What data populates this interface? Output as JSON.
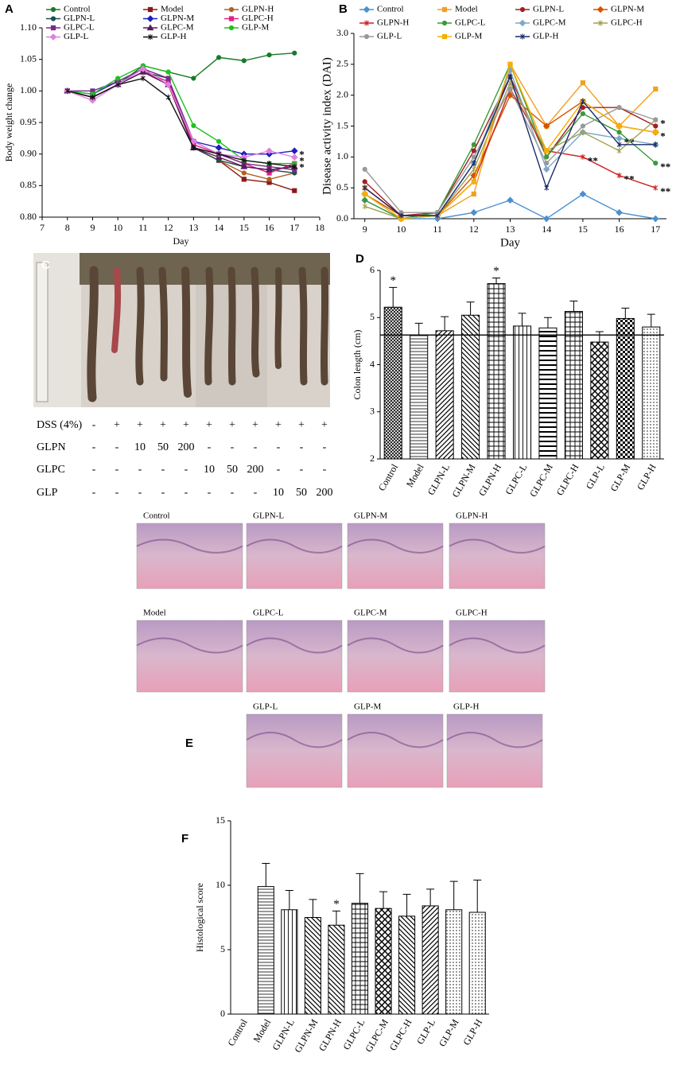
{
  "chart_data": [
    {
      "type": "line",
      "panel": "A",
      "xlabel": "Day",
      "ylabel": "Body weight change",
      "x": [
        8,
        9,
        10,
        11,
        12,
        13,
        14,
        15,
        16,
        17
      ],
      "xlim": [
        7,
        18
      ],
      "xticks": [
        7,
        8,
        9,
        10,
        11,
        12,
        13,
        14,
        15,
        16,
        17,
        18
      ],
      "ylim": [
        0.8,
        1.1
      ],
      "yticks": [
        {
          "value": 0.8,
          "label": "0.80"
        },
        0.85,
        {
          "value": 0.9,
          "label": "0.90"
        },
        0.95,
        {
          "value": 1.0,
          "label": "1.00"
        },
        1.05,
        {
          "value": 1.1,
          "label": "1.10"
        }
      ],
      "legend": "top-left",
      "series": [
        {
          "name": "Control",
          "color": "#1a7a2a",
          "marker": "circle",
          "values": [
            1.0,
            0.99,
            1.01,
            1.04,
            1.03,
            1.02,
            1.053,
            1.048,
            1.057,
            1.06
          ]
        },
        {
          "name": "Model",
          "color": "#8b1a1a",
          "marker": "square",
          "values": [
            1.0,
            0.99,
            1.01,
            1.03,
            1.01,
            0.91,
            0.89,
            0.86,
            0.855,
            0.842
          ]
        },
        {
          "name": "GLPN-H",
          "color": "#b06020",
          "marker": "circle",
          "values": [
            1.0,
            0.99,
            1.01,
            1.03,
            1.01,
            0.91,
            0.89,
            0.87,
            0.86,
            0.87
          ]
        },
        {
          "name": "GLPN-L",
          "color": "#1f5050",
          "marker": "circle",
          "values": [
            1.0,
            0.99,
            1.01,
            1.03,
            1.02,
            0.91,
            0.89,
            0.88,
            0.875,
            0.87
          ]
        },
        {
          "name": "GLPN-M",
          "color": "#1f1fbf",
          "marker": "diamond",
          "values": [
            1.0,
            0.995,
            1.015,
            1.035,
            1.01,
            0.92,
            0.91,
            0.9,
            0.9,
            0.905
          ],
          "significance": [
            null,
            null,
            null,
            null,
            null,
            null,
            null,
            null,
            null,
            "*"
          ]
        },
        {
          "name": "GLPC-H",
          "color": "#e0208a",
          "marker": "square",
          "values": [
            1.0,
            0.99,
            1.01,
            1.03,
            1.015,
            0.915,
            0.9,
            0.885,
            0.87,
            0.885
          ]
        },
        {
          "name": "GLPC-L",
          "color": "#7a2a8a",
          "marker": "square",
          "values": [
            1.0,
            1.0,
            1.015,
            1.035,
            1.02,
            0.92,
            0.9,
            0.885,
            0.88,
            0.875
          ]
        },
        {
          "name": "GLPC-M",
          "color": "#5a1a5a",
          "marker": "triangle",
          "values": [
            1.0,
            0.99,
            1.01,
            1.03,
            1.01,
            0.91,
            0.895,
            0.88,
            0.875,
            0.88
          ]
        },
        {
          "name": "GLP-M",
          "color": "#20c020",
          "marker": "circle",
          "values": [
            1.0,
            0.995,
            1.02,
            1.04,
            1.03,
            0.945,
            0.92,
            0.89,
            0.885,
            0.885
          ],
          "significance": [
            null,
            null,
            null,
            null,
            null,
            null,
            null,
            null,
            null,
            "*"
          ]
        },
        {
          "name": "GLP-L",
          "color": "#e080e0",
          "marker": "diamond",
          "values": [
            1.0,
            0.985,
            1.01,
            1.035,
            1.01,
            0.92,
            0.9,
            0.895,
            0.905,
            0.895
          ],
          "significance": [
            null,
            null,
            null,
            null,
            null,
            null,
            null,
            null,
            null,
            "*"
          ]
        },
        {
          "name": "GLP-H",
          "color": "#111111",
          "marker": "star",
          "values": [
            1.0,
            0.99,
            1.01,
            1.02,
            0.99,
            0.91,
            0.9,
            0.89,
            0.885,
            0.88
          ]
        }
      ]
    },
    {
      "type": "line",
      "panel": "B",
      "xlabel": "Day",
      "ylabel": "Disease activity index (DAI)",
      "x": [
        9,
        10,
        11,
        12,
        13,
        14,
        15,
        16,
        17
      ],
      "xlim": [
        8.7,
        17.3
      ],
      "xticks": [
        9,
        10,
        11,
        12,
        13,
        14,
        15,
        16,
        17
      ],
      "ylim": [
        0,
        3
      ],
      "yticks": [
        {
          "value": 0,
          "label": "0.0"
        },
        0.5,
        {
          "value": 1,
          "label": "1.0"
        },
        1.5,
        {
          "value": 2,
          "label": "2.0"
        },
        2.5,
        {
          "value": 3,
          "label": "3.0"
        }
      ],
      "legend": "top",
      "series": [
        {
          "name": "Control",
          "color": "#4a90d0",
          "marker": "diamond",
          "values": [
            0.3,
            0.0,
            0.0,
            0.1,
            0.3,
            0.0,
            0.4,
            0.1,
            0.0
          ]
        },
        {
          "name": "Model",
          "color": "#f0a020",
          "marker": "square",
          "values": [
            0.5,
            0.05,
            0.05,
            0.4,
            2.5,
            1.5,
            2.2,
            1.5,
            2.1
          ]
        },
        {
          "name": "GLPN-L",
          "color": "#a02020",
          "marker": "circle",
          "values": [
            0.6,
            0.05,
            0.1,
            1.1,
            2.3,
            1.0,
            1.8,
            1.8,
            1.5
          ]
        },
        {
          "name": "GLPN-M",
          "color": "#d35400",
          "marker": "diamond",
          "values": [
            0.4,
            0.05,
            0.05,
            0.7,
            2.0,
            1.5,
            1.9,
            1.5,
            1.4
          ],
          "significance": [
            null,
            null,
            null,
            null,
            null,
            null,
            null,
            null,
            "*"
          ]
        },
        {
          "name": "GLPN-H",
          "color": "#cc2020",
          "marker": "star",
          "values": [
            0.5,
            0.05,
            0.05,
            0.6,
            2.1,
            1.1,
            1.0,
            0.7,
            0.5
          ],
          "significance": [
            null,
            null,
            null,
            null,
            null,
            null,
            "**",
            "**",
            "**"
          ]
        },
        {
          "name": "GLPC-L",
          "color": "#3a9a3a",
          "marker": "circle",
          "values": [
            0.3,
            0.0,
            0.1,
            1.2,
            2.5,
            1.0,
            1.7,
            1.4,
            0.9
          ],
          "significance": [
            null,
            null,
            null,
            null,
            null,
            null,
            null,
            null,
            "**"
          ]
        },
        {
          "name": "GLPC-M",
          "color": "#7fa8c8",
          "marker": "diamond",
          "values": [
            0.4,
            0.0,
            0.05,
            0.9,
            2.4,
            0.8,
            1.4,
            1.3,
            1.2
          ],
          "significance": [
            null,
            null,
            null,
            null,
            null,
            null,
            null,
            "**",
            null
          ]
        },
        {
          "name": "GLPC-H",
          "color": "#a0a050",
          "marker": "star",
          "values": [
            0.2,
            0.0,
            0.05,
            0.8,
            2.2,
            1.1,
            1.4,
            1.1,
            1.6
          ],
          "significance": [
            null,
            null,
            null,
            null,
            null,
            null,
            null,
            null,
            "*"
          ]
        },
        {
          "name": "GLP-L",
          "color": "#999999",
          "marker": "circle",
          "values": [
            0.8,
            0.1,
            0.1,
            1.0,
            2.1,
            0.9,
            1.5,
            1.8,
            1.6
          ]
        },
        {
          "name": "GLP-M",
          "color": "#f5b000",
          "marker": "square",
          "values": [
            0.4,
            0.0,
            0.05,
            0.6,
            2.5,
            1.1,
            1.9,
            1.5,
            1.4
          ]
        },
        {
          "name": "GLP-H",
          "color": "#1a2a6a",
          "marker": "star",
          "values": [
            0.5,
            0.05,
            0.05,
            0.9,
            2.3,
            0.5,
            1.9,
            1.2,
            1.2
          ]
        }
      ]
    },
    {
      "type": "bar",
      "panel": "D",
      "ylabel": "Colon length (cm)",
      "categories": [
        "Control",
        "Model",
        "GLPN-L",
        "GLPN-M",
        "GLPN-H",
        "GLPC-L",
        "GLPC-M",
        "GLPC-H",
        "GLP-L",
        "GLP-M",
        "GLP-H"
      ],
      "values": [
        5.22,
        4.63,
        4.72,
        5.05,
        5.72,
        4.82,
        4.78,
        5.13,
        4.48,
        4.98,
        4.8
      ],
      "errors": [
        0.42,
        0.25,
        0.3,
        0.28,
        0.12,
        0.27,
        0.22,
        0.22,
        0.22,
        0.22,
        0.27
      ],
      "significance": [
        "*",
        null,
        null,
        null,
        "*",
        null,
        null,
        null,
        null,
        null,
        null
      ],
      "patterns": [
        "cross",
        "horizontal",
        "diagonal",
        "backdiagonal",
        "grid",
        "vertical",
        "thick-horizontal",
        "grid",
        "xcross",
        "checker",
        "dots"
      ],
      "reference_line": 4.63,
      "ylim": [
        2,
        6
      ],
      "yticks": [
        2,
        3,
        4,
        5,
        6
      ]
    },
    {
      "type": "bar",
      "panel": "F",
      "ylabel": "Histological score",
      "categories": [
        "Control",
        "Model",
        "GLPN-L",
        "GLPN-M",
        "GLPN-H",
        "GLPC-L",
        "GLPC-M",
        "GLPC-H",
        "GLP-L",
        "GLP-M",
        "GLP-H"
      ],
      "values": [
        0,
        9.9,
        8.1,
        7.5,
        6.9,
        8.6,
        8.2,
        7.6,
        8.4,
        8.1,
        7.9
      ],
      "errors": [
        0,
        1.8,
        1.5,
        1.4,
        1.1,
        2.3,
        1.3,
        1.7,
        1.3,
        2.2,
        2.5
      ],
      "significance": [
        null,
        null,
        null,
        null,
        "*",
        null,
        null,
        null,
        null,
        null,
        null
      ],
      "patterns": [
        "horizontal",
        "horizontal",
        "vertical",
        "backdiagonal",
        "backdiagonal",
        "grid",
        "xcross",
        "backdiagonal",
        "diagonal",
        "dots",
        "dots"
      ],
      "ylim": [
        0,
        15
      ],
      "yticks": [
        0,
        5,
        10,
        15
      ]
    }
  ],
  "panel_c": {
    "label": "C",
    "rows": [
      {
        "name": "DSS (4%)",
        "cells": [
          "-",
          "+",
          "+",
          "+",
          "+",
          "+",
          "+",
          "+",
          "+",
          "+",
          "+"
        ]
      },
      {
        "name": "GLPN",
        "cells": [
          "-",
          "-",
          "10",
          "50",
          "200",
          "-",
          "-",
          "-",
          "-",
          "-",
          "-"
        ]
      },
      {
        "name": "GLPC",
        "cells": [
          "-",
          "-",
          "-",
          "-",
          "-",
          "10",
          "50",
          "200",
          "-",
          "-",
          "-"
        ]
      },
      {
        "name": "GLP",
        "cells": [
          "-",
          "-",
          "-",
          "-",
          "-",
          "-",
          "-",
          "-",
          "10",
          "50",
          "200"
        ]
      }
    ]
  },
  "panel_e": {
    "label": "E",
    "captions": [
      "Control",
      "GLPN-L",
      "GLPN-M",
      "GLPN-H",
      "Model",
      "GLPC-L",
      "GLPC-M",
      "GLPC-H",
      "GLP-L",
      "GLP-M",
      "GLP-H"
    ]
  }
}
